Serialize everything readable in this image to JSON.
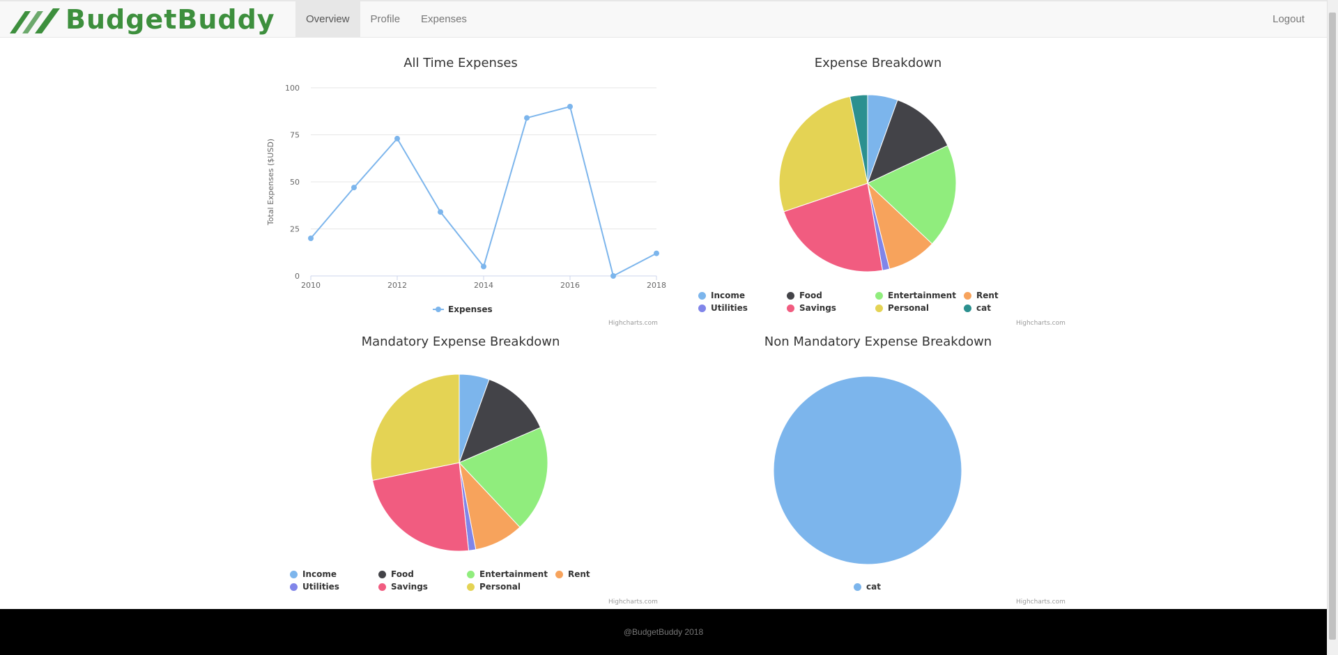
{
  "brand": {
    "name": "BudgetBuddy",
    "logo_color": "#3d8f3d"
  },
  "nav": {
    "items": [
      {
        "label": "Overview",
        "active": true
      },
      {
        "label": "Profile",
        "active": false
      },
      {
        "label": "Expenses",
        "active": false
      }
    ],
    "logout_label": "Logout"
  },
  "credits": "Highcharts.com",
  "footer": {
    "text": "@BudgetBuddy 2018"
  },
  "legend_colors": {
    "Income": "#7cb5ec",
    "Food": "#434348",
    "Entertainment": "#90ed7d",
    "Rent": "#f7a35c",
    "Utilities": "#8085e9",
    "Savings": "#f15c80",
    "Personal": "#e4d354",
    "cat": "#2b908f"
  },
  "chart_data": [
    {
      "type": "line",
      "title": "All Time Expenses",
      "ylabel": "Total Expenses ($USD)",
      "xlabel": "",
      "x": [
        2010,
        2011,
        2012,
        2013,
        2014,
        2015,
        2016,
        2017,
        2018
      ],
      "x_ticks": [
        "2010",
        "2012",
        "2014",
        "2016",
        "2018"
      ],
      "y_ticks": [
        "0",
        "25",
        "50",
        "75",
        "100"
      ],
      "ylim": [
        0,
        100
      ],
      "series": [
        {
          "name": "Expenses",
          "color": "#7cb5ec",
          "values": [
            20,
            47,
            73,
            34,
            5,
            84,
            90,
            0,
            12
          ]
        }
      ],
      "grid": true,
      "legend": "bottom-center"
    },
    {
      "type": "pie",
      "title": "Expense Breakdown",
      "slices": [
        {
          "name": "Income",
          "value": 5.5,
          "color": "#7cb5ec"
        },
        {
          "name": "Food",
          "value": 12.5,
          "color": "#434348"
        },
        {
          "name": "Entertainment",
          "value": 19,
          "color": "#90ed7d"
        },
        {
          "name": "Rent",
          "value": 9,
          "color": "#f7a35c"
        },
        {
          "name": "Utilities",
          "value": 1.3,
          "color": "#8085e9"
        },
        {
          "name": "Savings",
          "value": 22.5,
          "color": "#f15c80"
        },
        {
          "name": "Personal",
          "value": 27,
          "color": "#e4d354"
        },
        {
          "name": "cat",
          "value": 3.2,
          "color": "#2b908f"
        }
      ],
      "legend": "bottom"
    },
    {
      "type": "pie",
      "title": "Mandatory Expense Breakdown",
      "slices": [
        {
          "name": "Income",
          "value": 5.5,
          "color": "#7cb5ec"
        },
        {
          "name": "Food",
          "value": 13,
          "color": "#434348"
        },
        {
          "name": "Entertainment",
          "value": 19.5,
          "color": "#90ed7d"
        },
        {
          "name": "Rent",
          "value": 9,
          "color": "#f7a35c"
        },
        {
          "name": "Utilities",
          "value": 1.3,
          "color": "#8085e9"
        },
        {
          "name": "Savings",
          "value": 23.5,
          "color": "#f15c80"
        },
        {
          "name": "Personal",
          "value": 28.2,
          "color": "#e4d354"
        }
      ],
      "legend": "bottom"
    },
    {
      "type": "pie",
      "title": "Non Mandatory Expense Breakdown",
      "slices": [
        {
          "name": "cat",
          "value": 100,
          "color": "#7cb5ec"
        }
      ],
      "legend": "bottom"
    }
  ]
}
